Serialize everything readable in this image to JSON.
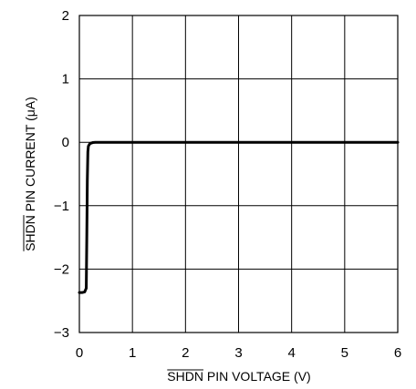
{
  "chart_data": {
    "type": "line",
    "xlabel": {
      "overbar": "SHDN",
      "rest": " PIN VOLTAGE (V)"
    },
    "ylabel": {
      "overbar": "SHDN",
      "rest": " PIN CURRENT (μA)"
    },
    "xlim": [
      0,
      6
    ],
    "ylim": [
      -3,
      2
    ],
    "xticks": [
      "0",
      "1",
      "2",
      "3",
      "4",
      "5",
      "6"
    ],
    "yticks": [
      "−3",
      "−2",
      "−1",
      "0",
      "1",
      "2"
    ],
    "grid": true,
    "series": [
      {
        "x": [
          0,
          0.05,
          0.1,
          0.13,
          0.14,
          0.15,
          0.16,
          0.17,
          0.2,
          0.25,
          0.3,
          0.5,
          1,
          2,
          3,
          4,
          5,
          6
        ],
        "y": [
          -2.37,
          -2.37,
          -2.36,
          -2.3,
          -1.5,
          -0.6,
          -0.15,
          -0.06,
          -0.02,
          -0.005,
          0,
          0,
          0,
          0,
          0,
          0,
          0,
          0
        ]
      }
    ]
  }
}
